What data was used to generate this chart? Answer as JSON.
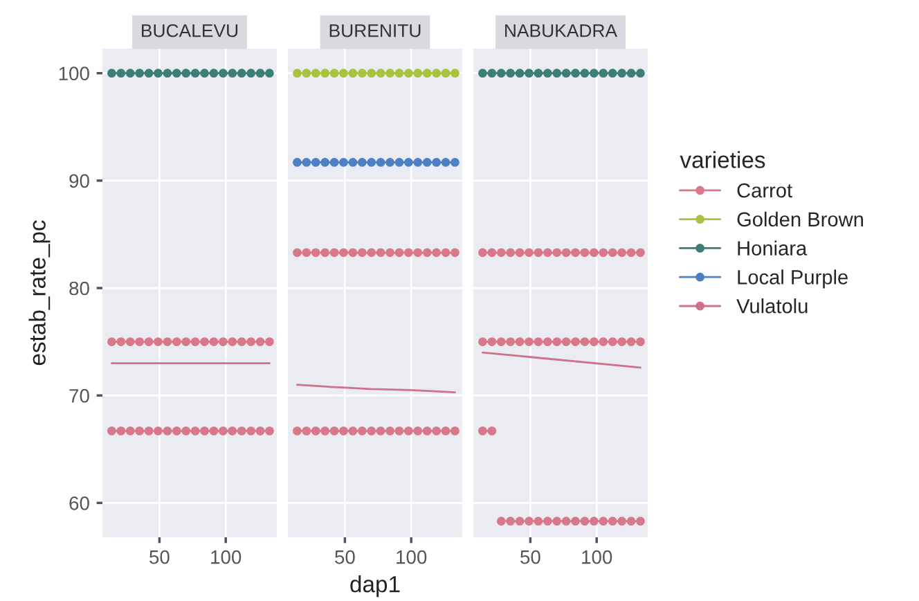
{
  "chart_data": [
    {
      "type": "line",
      "title": "BUCALEVU",
      "ylabel": "estab_rate_pc",
      "xlim": [
        7,
        138.5
      ],
      "xticks": [
        50,
        100
      ],
      "ylim": [
        56.8,
        102.3
      ],
      "yticks": [
        60,
        70,
        80,
        90,
        100
      ],
      "grid": true,
      "marker": "circle",
      "line_style": "solid",
      "legend": "right",
      "legend_title": "varieties",
      "series": [
        {
          "name": "Honiara",
          "color": "#3d7f78",
          "x": [
            14,
            21,
            28,
            35,
            42,
            49,
            56,
            63,
            70,
            77,
            84,
            91,
            98,
            105,
            112,
            119,
            126,
            133
          ],
          "values": [
            100,
            100,
            100,
            100,
            100,
            100,
            100,
            100,
            100,
            100,
            100,
            100,
            100,
            100,
            100,
            100,
            100,
            100
          ]
        },
        {
          "name": "Carrot",
          "color": "#d9788a",
          "x": [
            14,
            21,
            28,
            35,
            42,
            49,
            56,
            63,
            70,
            77,
            84,
            91,
            98,
            105,
            112,
            119,
            126,
            133
          ],
          "values": [
            75,
            75,
            75,
            75,
            75,
            75,
            75,
            75,
            75,
            75,
            75,
            75,
            75,
            75,
            75,
            75,
            75,
            75
          ]
        },
        {
          "color": "#d9788a",
          "x": [
            14,
            21,
            28,
            35,
            42,
            49,
            56,
            63,
            70,
            77,
            84,
            91,
            98,
            105,
            112,
            119,
            126,
            133
          ],
          "values": [
            66.7,
            66.7,
            66.7,
            66.7,
            66.7,
            66.7,
            66.7,
            66.7,
            66.7,
            66.7,
            66.7,
            66.7,
            66.7,
            66.7,
            66.7,
            66.7,
            66.7,
            66.7
          ]
        },
        {
          "name": "Vulatolu",
          "color": "#d0708a",
          "marker": "none",
          "x": [
            14,
            133
          ],
          "values": [
            73,
            73
          ]
        }
      ]
    },
    {
      "type": "line",
      "title": "BURENITU",
      "xlabel": "dap1",
      "xlim": [
        7,
        138.5
      ],
      "xticks": [
        50,
        100
      ],
      "ylim": [
        56.8,
        102.3
      ],
      "yticks": [
        60,
        70,
        80,
        90,
        100
      ],
      "grid": true,
      "marker": "circle",
      "line_style": "solid",
      "legend": "right",
      "tick_labels": "x",
      "series": [
        {
          "name": "Golden Brown",
          "color": "#a9c23f",
          "x": [
            14,
            21,
            28,
            35,
            42,
            49,
            56,
            63,
            70,
            77,
            84,
            91,
            98,
            105,
            112,
            119,
            126,
            133
          ],
          "values": [
            100,
            100,
            100,
            100,
            100,
            100,
            100,
            100,
            100,
            100,
            100,
            100,
            100,
            100,
            100,
            100,
            100,
            100
          ]
        },
        {
          "name": "Local Purple",
          "color": "#4d80c4",
          "x": [
            14,
            21,
            28,
            35,
            42,
            49,
            56,
            63,
            70,
            77,
            84,
            91,
            98,
            105,
            112,
            119,
            126,
            133
          ],
          "values": [
            91.7,
            91.7,
            91.7,
            91.7,
            91.7,
            91.7,
            91.7,
            91.7,
            91.7,
            91.7,
            91.7,
            91.7,
            91.7,
            91.7,
            91.7,
            91.7,
            91.7,
            91.7
          ]
        },
        {
          "color": "#d9788a",
          "x": [
            14,
            21,
            28,
            35,
            42,
            49,
            56,
            63,
            70,
            77,
            84,
            91,
            98,
            105,
            112,
            119,
            126,
            133
          ],
          "values": [
            83.3,
            83.3,
            83.3,
            83.3,
            83.3,
            83.3,
            83.3,
            83.3,
            83.3,
            83.3,
            83.3,
            83.3,
            83.3,
            83.3,
            83.3,
            83.3,
            83.3,
            83.3
          ]
        },
        {
          "color": "#d9788a",
          "x": [
            14,
            21,
            28,
            35,
            42,
            49,
            56,
            63,
            70,
            77,
            84,
            91,
            98,
            105,
            112,
            119,
            126,
            133
          ],
          "values": [
            66.7,
            66.7,
            66.7,
            66.7,
            66.7,
            66.7,
            66.7,
            66.7,
            66.7,
            66.7,
            66.7,
            66.7,
            66.7,
            66.7,
            66.7,
            66.7,
            66.7,
            66.7
          ]
        },
        {
          "color": "#d0708a",
          "marker": "none",
          "x": [
            14,
            40,
            70,
            100,
            133
          ],
          "values": [
            71,
            70.8,
            70.6,
            70.5,
            70.3
          ]
        }
      ]
    },
    {
      "type": "line",
      "title": "NABUKADRA",
      "xlim": [
        7,
        138.5
      ],
      "xticks": [
        50,
        100
      ],
      "ylim": [
        56.8,
        102.3
      ],
      "yticks": [
        60,
        70,
        80,
        90,
        100
      ],
      "grid": true,
      "marker": "circle",
      "line_style": "solid",
      "tick_labels": "x",
      "series": [
        {
          "color": "#3d7f78",
          "x": [
            14,
            21,
            28,
            35,
            42,
            49,
            56,
            63,
            70,
            77,
            84,
            91,
            98,
            105,
            112,
            119,
            126,
            133
          ],
          "values": [
            100,
            100,
            100,
            100,
            100,
            100,
            100,
            100,
            100,
            100,
            100,
            100,
            100,
            100,
            100,
            100,
            100,
            100
          ]
        },
        {
          "color": "#d9788a",
          "x": [
            14,
            21,
            28,
            35,
            42,
            49,
            56,
            63,
            70,
            77,
            84,
            91,
            98,
            105,
            112,
            119,
            126,
            133
          ],
          "values": [
            83.3,
            83.3,
            83.3,
            83.3,
            83.3,
            83.3,
            83.3,
            83.3,
            83.3,
            83.3,
            83.3,
            83.3,
            83.3,
            83.3,
            83.3,
            83.3,
            83.3,
            83.3
          ]
        },
        {
          "color": "#d9788a",
          "x": [
            14,
            21,
            28,
            35,
            42,
            49,
            56,
            63,
            70,
            77,
            84,
            91,
            98,
            105,
            112,
            119,
            126,
            133
          ],
          "values": [
            75,
            75,
            75,
            75,
            75,
            75,
            75,
            75,
            75,
            75,
            75,
            75,
            75,
            75,
            75,
            75,
            75,
            75
          ]
        },
        {
          "color": "#d9788a",
          "x": [
            14,
            21
          ],
          "values": [
            66.7,
            66.7
          ]
        },
        {
          "color": "#d9788a",
          "x": [
            28,
            35,
            42,
            49,
            56,
            63,
            70,
            77,
            84,
            91,
            98,
            105,
            112,
            119,
            126,
            133
          ],
          "values": [
            58.3,
            58.3,
            58.3,
            58.3,
            58.3,
            58.3,
            58.3,
            58.3,
            58.3,
            58.3,
            58.3,
            58.3,
            58.3,
            58.3,
            58.3,
            58.3
          ]
        },
        {
          "color": "#d0708a",
          "marker": "none",
          "x": [
            14,
            133
          ],
          "values": [
            74,
            72.6
          ]
        }
      ]
    }
  ]
}
